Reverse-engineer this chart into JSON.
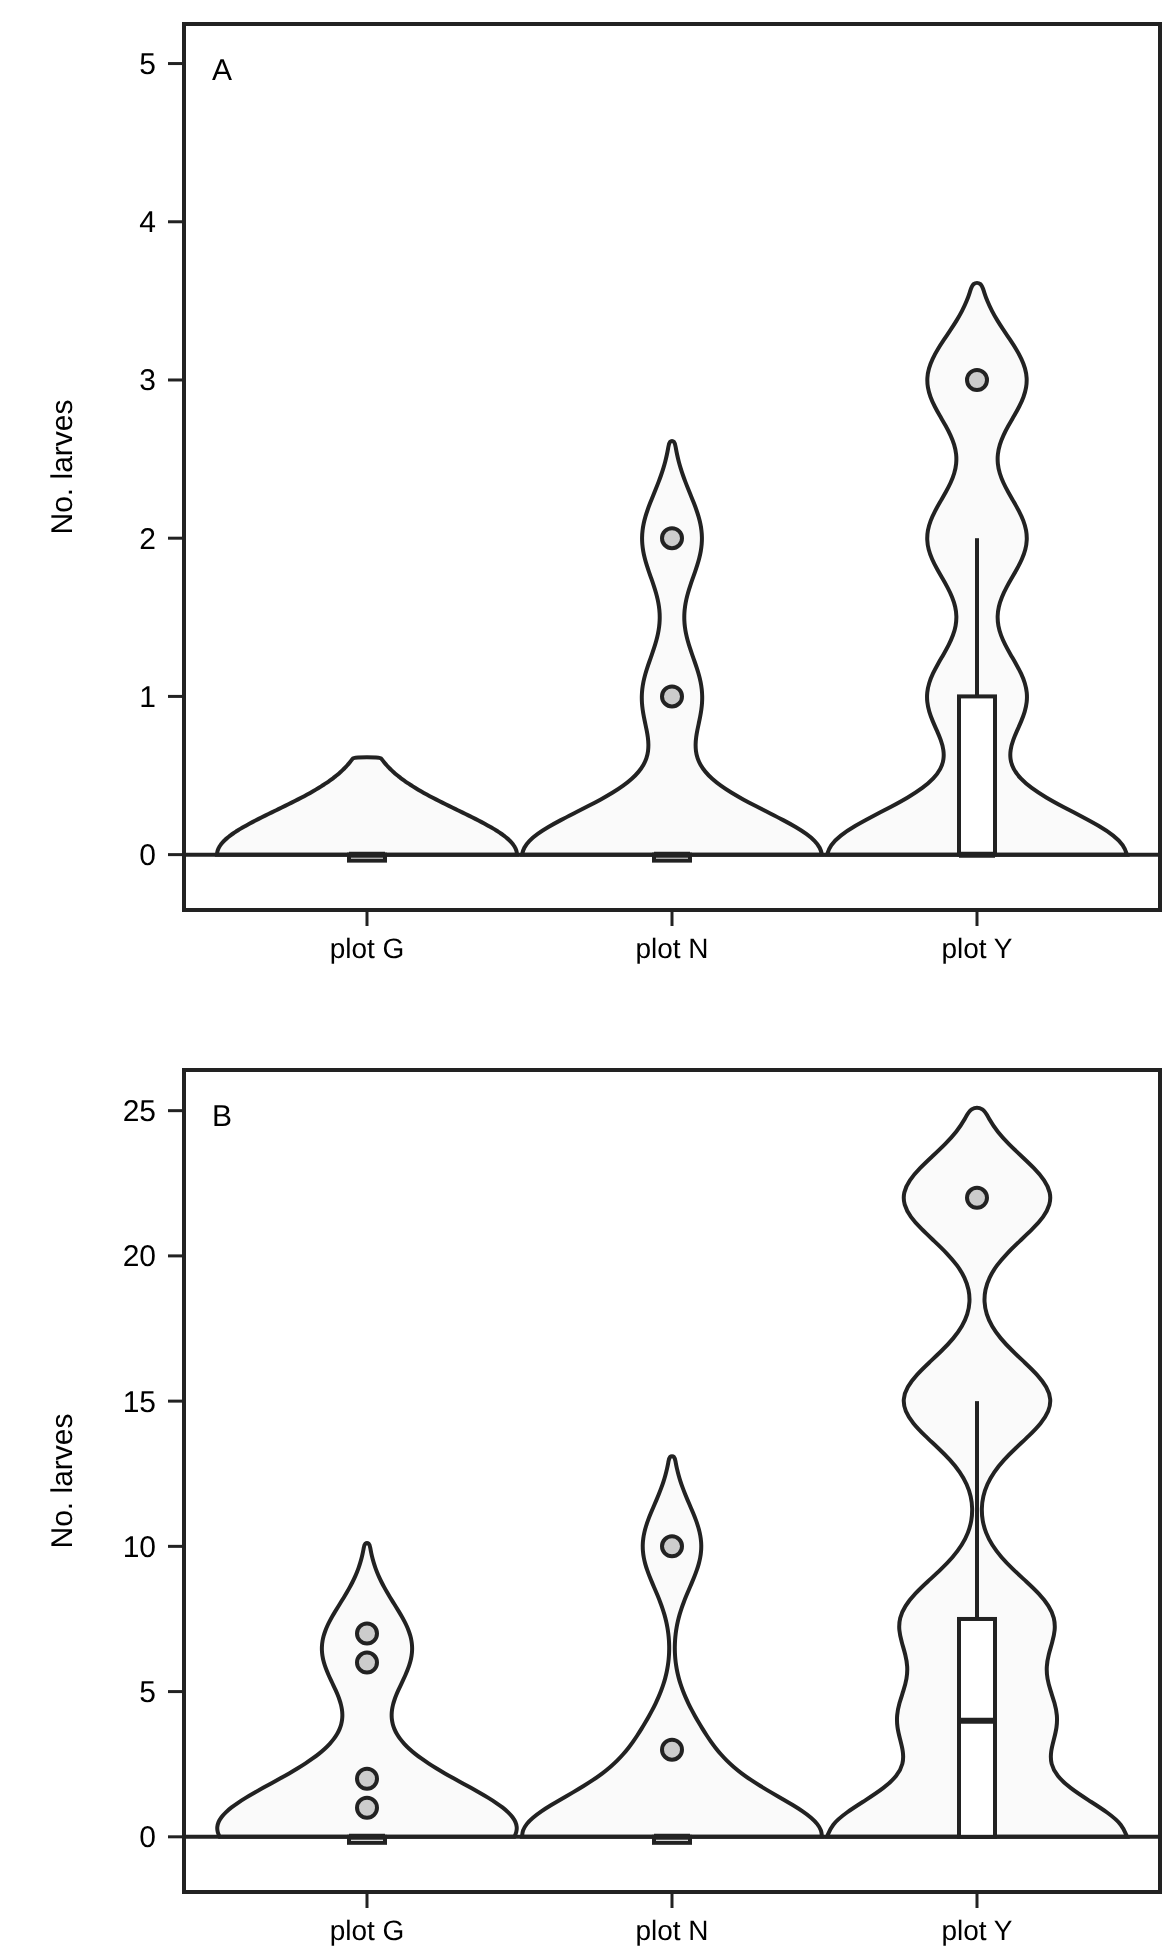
{
  "chart_data": [
    {
      "type": "box",
      "ylabel": "No. larves",
      "annotations": [
        "A"
      ],
      "categories": [
        "plot G",
        "plot N",
        "plot Y"
      ],
      "ylim": [
        -0.35,
        5.25
      ],
      "yticks": [
        0,
        1,
        2,
        3,
        4,
        5
      ],
      "ref_lines": [
        {
          "axis": "y",
          "value": 0
        }
      ],
      "boxes": [
        {
          "low": 0,
          "q1": 0,
          "median": 0,
          "q3": 0,
          "high": 0
        },
        {
          "low": 0,
          "q1": 0,
          "median": 0,
          "q3": 0,
          "high": 0,
          "outliers": [
            1,
            2
          ]
        },
        {
          "low": 0,
          "q1": 0,
          "median": 0,
          "q3": 1,
          "high": 2,
          "outliers": [
            3
          ]
        }
      ]
    },
    {
      "type": "box",
      "ylabel": "No. larves",
      "annotations": [
        "B"
      ],
      "categories": [
        "plot G",
        "plot N",
        "plot Y"
      ],
      "ylim": [
        -1.9,
        26.4
      ],
      "yticks": [
        0,
        5,
        10,
        15,
        20,
        25
      ],
      "ref_lines": [
        {
          "axis": "y",
          "value": 0
        }
      ],
      "boxes": [
        {
          "low": 0,
          "q1": 0,
          "median": 0,
          "q3": 0,
          "high": 0,
          "outliers": [
            1,
            2,
            6,
            7
          ]
        },
        {
          "low": 0,
          "q1": 0,
          "median": 0,
          "q3": 0,
          "high": 0,
          "outliers": [
            3,
            10
          ]
        },
        {
          "low": 0,
          "q1": 0,
          "median": 4,
          "q3": 7.5,
          "high": 15,
          "outliers": [
            22
          ]
        }
      ]
    }
  ]
}
